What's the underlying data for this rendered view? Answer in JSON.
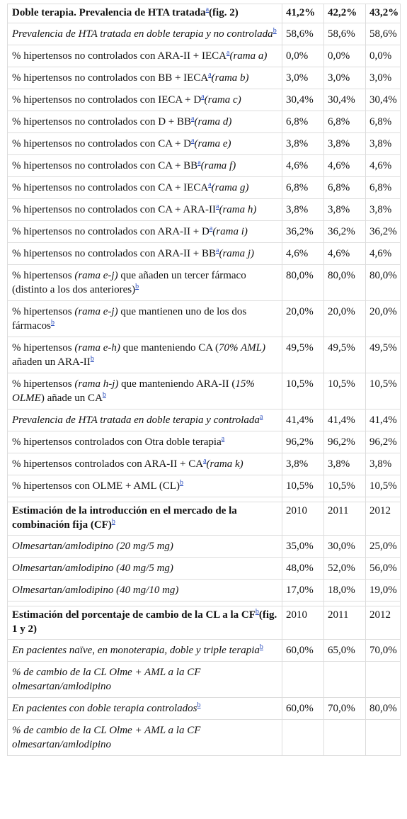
{
  "table": {
    "rows": [
      {
        "label": [
          {
            "bold": "Doble terapia. Prevalencia de HTA tratada"
          },
          {
            "sup": "a"
          },
          {
            "bold": "(fig. 2)"
          }
        ],
        "cells": [
          "41,2%",
          "42,2%",
          "43,2%"
        ]
      },
      {
        "label": [
          {
            "italic": "Prevalencia de HTA tratada en doble terapia y no controlada"
          },
          {
            "sup": "b"
          }
        ],
        "cells": [
          "58,6%",
          "58,6%",
          "58,6%"
        ]
      },
      {
        "label": [
          {
            "text": "% hipertensos no controlados con ARA-II + IECA"
          },
          {
            "sup": "a"
          },
          {
            "italic": "(rama a)"
          }
        ],
        "cells": [
          "0,0%",
          "0,0%",
          "0,0%"
        ]
      },
      {
        "label": [
          {
            "text": "% hipertensos no controlados con BB + IECA"
          },
          {
            "sup": "a"
          },
          {
            "italic": "(rama b)"
          }
        ],
        "cells": [
          "3,0%",
          "3,0%",
          "3,0%"
        ]
      },
      {
        "label": [
          {
            "text": "% hipertensos no controlados con IECA + D"
          },
          {
            "sup": "a"
          },
          {
            "italic": "(rama c)"
          }
        ],
        "cells": [
          "30,4%",
          "30,4%",
          "30,4%"
        ]
      },
      {
        "label": [
          {
            "text": "% hipertensos no controlados con D + BB"
          },
          {
            "sup": "a"
          },
          {
            "italic": "(rama d)"
          }
        ],
        "cells": [
          "6,8%",
          "6,8%",
          "6,8%"
        ]
      },
      {
        "label": [
          {
            "text": "% hipertensos no controlados con CA + D"
          },
          {
            "sup": "a"
          },
          {
            "italic": "(rama e)"
          }
        ],
        "cells": [
          "3,8%",
          "3,8%",
          "3,8%"
        ]
      },
      {
        "label": [
          {
            "text": "% hipertensos no controlados con CA + BB"
          },
          {
            "sup": "a"
          },
          {
            "italic": "(rama f)"
          }
        ],
        "cells": [
          "4,6%",
          "4,6%",
          "4,6%"
        ]
      },
      {
        "label": [
          {
            "text": "% hipertensos no controlados con CA + IECA"
          },
          {
            "sup": "a"
          },
          {
            "italic": "(rama g)"
          }
        ],
        "cells": [
          "6,8%",
          "6,8%",
          "6,8%"
        ]
      },
      {
        "label": [
          {
            "text": "% hipertensos no controlados con CA + ARA-II"
          },
          {
            "sup": "a"
          },
          {
            "italic": "(rama h)"
          }
        ],
        "cells": [
          "3,8%",
          "3,8%",
          "3,8%"
        ]
      },
      {
        "label": [
          {
            "text": "% hipertensos no controlados con ARA-II + D"
          },
          {
            "sup": "a"
          },
          {
            "italic": "(rama i)"
          }
        ],
        "cells": [
          "36,2%",
          "36,2%",
          "36,2%"
        ]
      },
      {
        "label": [
          {
            "text": "% hipertensos no controlados con ARA-II + BB"
          },
          {
            "sup": "a"
          },
          {
            "italic": "(rama j)"
          }
        ],
        "cells": [
          "4,6%",
          "4,6%",
          "4,6%"
        ]
      },
      {
        "label": [
          {
            "text": "% hipertensos "
          },
          {
            "italic": "(rama e-j)"
          },
          {
            "text": " que añaden un tercer fármaco (distinto a los dos anteriores)"
          },
          {
            "sup": "b"
          }
        ],
        "cells": [
          "80,0%",
          "80,0%",
          "80,0%"
        ]
      },
      {
        "label": [
          {
            "text": "% hipertensos "
          },
          {
            "italic": "(rama e-j)"
          },
          {
            "text": " que mantienen uno de los dos fármacos"
          },
          {
            "sup": "b"
          }
        ],
        "cells": [
          "20,0%",
          "20,0%",
          "20,0%"
        ]
      },
      {
        "label": [
          {
            "text": "% hipertensos "
          },
          {
            "italic": "(rama e-h)"
          },
          {
            "text": " que manteniendo CA ("
          },
          {
            "italic": "70% AML)"
          },
          {
            "text": " añaden un ARA-II"
          },
          {
            "sup": "b"
          }
        ],
        "cells": [
          "49,5%",
          "49,5%",
          "49,5%"
        ]
      },
      {
        "label": [
          {
            "text": "% hipertensos "
          },
          {
            "italic": "(rama h-j)"
          },
          {
            "text": " que manteniendo ARA-II ("
          },
          {
            "italic": "15% OLME"
          },
          {
            "text": ") añade un CA"
          },
          {
            "sup": "b"
          }
        ],
        "cells": [
          "10,5%",
          "10,5%",
          "10,5%"
        ]
      },
      {
        "label": [
          {
            "italic": "Prevalencia de HTA tratada en doble terapia y controlada"
          },
          {
            "sup": "a"
          }
        ],
        "cells": [
          "41,4%",
          "41,4%",
          "41,4%"
        ]
      },
      {
        "label": [
          {
            "text": "% hipertensos controlados con Otra doble terapia"
          },
          {
            "sup": "a"
          }
        ],
        "cells": [
          "96,2%",
          "96,2%",
          "96,2%"
        ]
      },
      {
        "label": [
          {
            "text": "% hipertensos controlados con ARA-II + CA"
          },
          {
            "sup": "a"
          },
          {
            "italic": "(rama k)"
          }
        ],
        "cells": [
          "3,8%",
          "3,8%",
          "3,8%"
        ]
      },
      {
        "label": [
          {
            "text": "% hipertensos con OLME + AML (CL)"
          },
          {
            "sup": "b"
          }
        ],
        "cells": [
          "10,5%",
          "10,5%",
          "10,5%"
        ]
      },
      {
        "label": [],
        "cells": []
      },
      {
        "label": [
          {
            "bold": "Estimación de la introducción en el mercado de la combinación fija (CF)"
          },
          {
            "sup": "b"
          }
        ],
        "cells": [
          "2010",
          "2011",
          "2012"
        ]
      },
      {
        "label": [
          {
            "italic": "Olmesartan/amlodipino (20 mg/5 mg)"
          }
        ],
        "cells": [
          "35,0%",
          "30,0%",
          "25,0%"
        ]
      },
      {
        "label": [
          {
            "italic": "Olmesartan/amlodipino (40 mg/5 mg)"
          }
        ],
        "cells": [
          "48,0%",
          "52,0%",
          "56,0%"
        ]
      },
      {
        "label": [
          {
            "italic": "Olmesartan/amlodipino (40 mg/10 mg)"
          }
        ],
        "cells": [
          "17,0%",
          "18,0%",
          "19,0%"
        ]
      },
      {
        "label": [],
        "cells": []
      },
      {
        "label": [
          {
            "bold": "Estimación del porcentaje de cambio de la CL a la CF"
          },
          {
            "sup": "b"
          },
          {
            "bold": "(fig. 1 y 2)"
          }
        ],
        "cells": [
          "2010",
          "2011",
          "2012"
        ]
      },
      {
        "label": [
          {
            "italic": "En pacientes naïve, en monoterapia, doble y triple terapia"
          },
          {
            "sup": "b"
          }
        ],
        "cells": [
          "60,0%",
          "65,0%",
          "70,0%"
        ]
      },
      {
        "label": [
          {
            "italic": "% de cambio de la CL Olme + AML a la CF olmesartan/amlodipino"
          }
        ],
        "cells": []
      },
      {
        "label": [
          {
            "italic": "En pacientes con doble terapia controlados"
          },
          {
            "sup": "b"
          }
        ],
        "cells": [
          "60,0%",
          "70,0%",
          "80,0%"
        ]
      },
      {
        "label": [
          {
            "italic": "% de cambio de la CL Olme + AML a la CF olmesartan/amlodipino"
          }
        ],
        "cells": []
      }
    ]
  }
}
